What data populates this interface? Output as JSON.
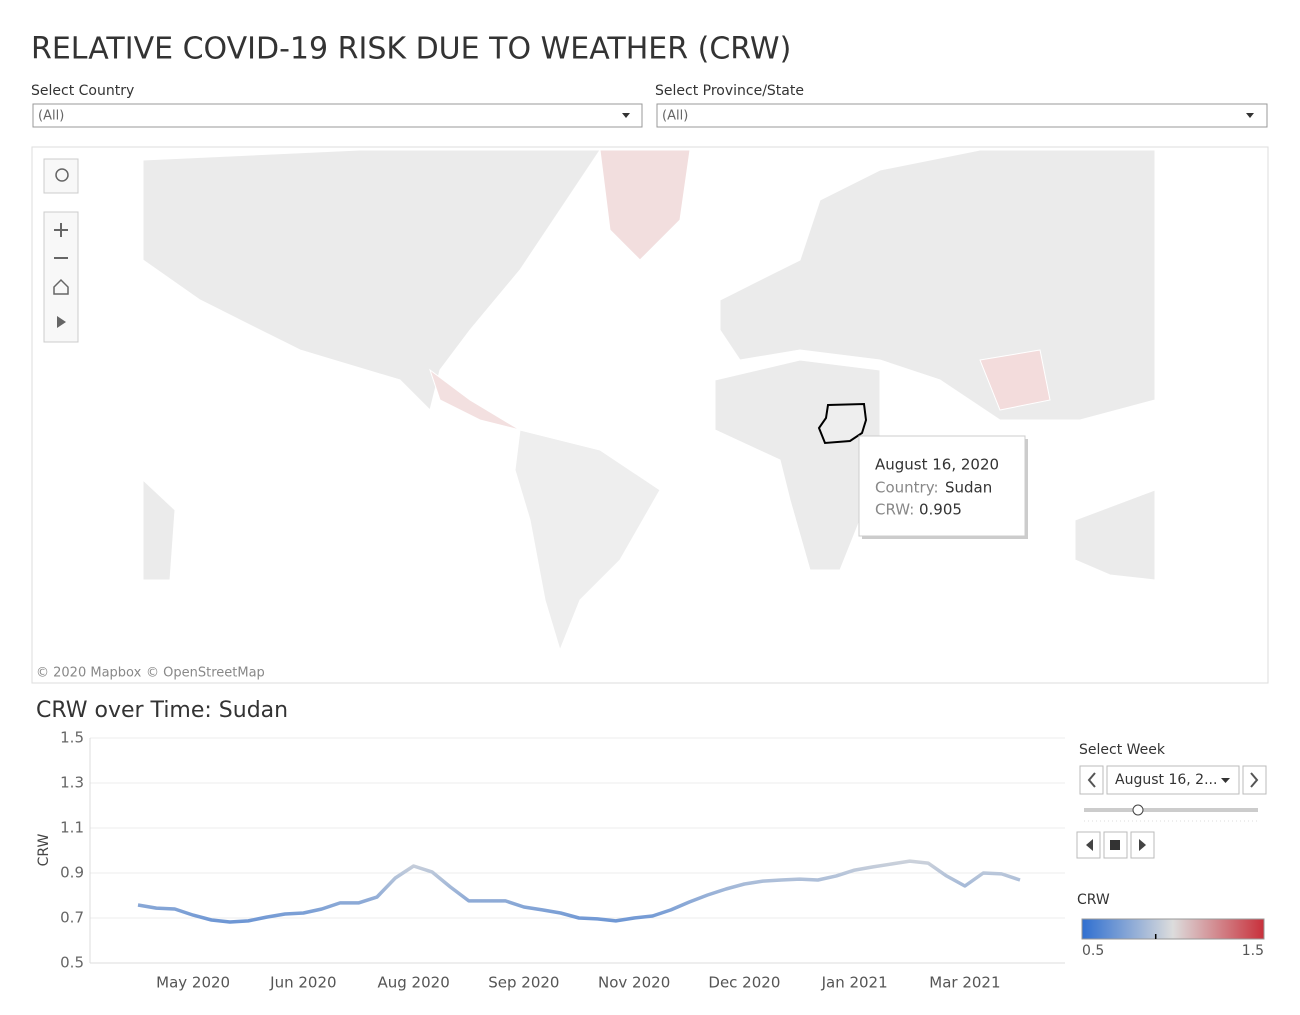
{
  "header": {
    "title": "RELATIVE COVID-19 RISK DUE TO WEATHER (CRW)"
  },
  "filters": [
    {
      "label": "Select Country",
      "value": "(All)"
    },
    {
      "label": "Select Province/State",
      "value": "(All)"
    }
  ],
  "map": {
    "attribution": [
      "© 2020 Mapbox",
      "© OpenStreetMap"
    ],
    "tooltip": {
      "date": "August 16, 2020",
      "fields": [
        {
          "label": "Country:",
          "value": "Sudan"
        },
        {
          "label": "CRW:",
          "value": 0.905
        }
      ]
    }
  },
  "chart_data": {
    "type": "line",
    "title": "CRW over Time: Sudan",
    "y_label": "CRW",
    "categories": [
      null,
      null,
      null,
      "May 2020",
      null,
      null,
      null,
      null,
      null,
      "Jun 2020",
      null,
      null,
      null,
      null,
      null,
      "Aug 2020",
      null,
      null,
      null,
      null,
      null,
      "Sep 2020",
      null,
      null,
      null,
      null,
      null,
      "Nov 2020",
      null,
      null,
      null,
      null,
      null,
      "Dec 2020",
      null,
      null,
      null,
      null,
      null,
      "Jan 2021",
      null,
      null,
      null,
      null,
      null,
      "Mar 2021",
      null,
      null,
      null
    ],
    "values": [
      0.758,
      0.744,
      0.74,
      0.713,
      0.691,
      0.682,
      0.687,
      0.704,
      0.718,
      0.722,
      0.74,
      0.767,
      0.767,
      0.793,
      0.878,
      0.931,
      0.905,
      0.838,
      0.776,
      0.776,
      0.776,
      0.749,
      0.736,
      0.722,
      0.7,
      0.696,
      0.687,
      0.7,
      0.709,
      0.736,
      0.771,
      0.802,
      0.829,
      0.851,
      0.864,
      0.869,
      0.873,
      0.869,
      0.887,
      0.913,
      0.927,
      0.94,
      0.953,
      0.944,
      0.887,
      0.842,
      0.9,
      0.896,
      0.869
    ],
    "ylim": [
      0.5,
      1.5
    ],
    "yticks": [
      0.5,
      0.7,
      0.9,
      1.1,
      1.3,
      1.5
    ],
    "grid": true
  },
  "week_selector": {
    "label": "Select Week",
    "value": "August 16, 2..."
  },
  "color_legend": {
    "title": "CRW",
    "range": [
      0.5,
      1.5
    ],
    "colors": [
      "#2f6fd0",
      "#dcdcdc",
      "#c8303b"
    ]
  }
}
